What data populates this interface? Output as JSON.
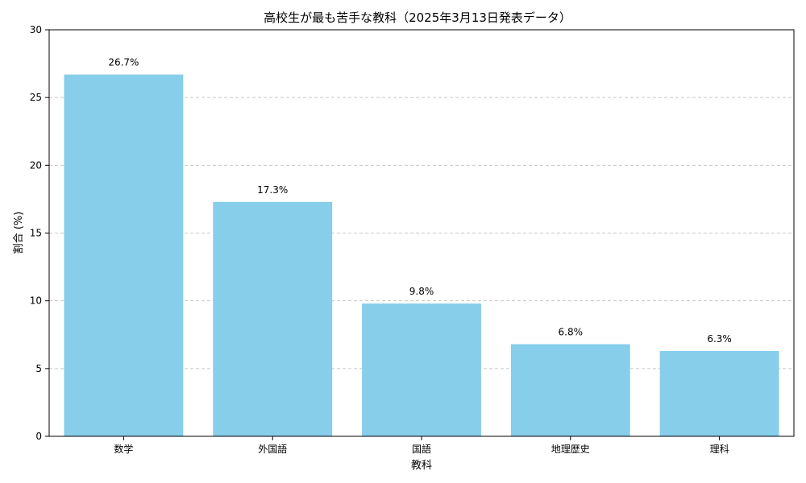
{
  "chart_data": {
    "type": "bar",
    "title": "高校生が最も苦手な教科（2025年3月13日発表データ）",
    "xlabel": "教科",
    "ylabel": "割合 (%)",
    "categories": [
      "数学",
      "外国語",
      "国語",
      "地理歴史",
      "理科"
    ],
    "values": [
      26.7,
      17.3,
      9.8,
      6.8,
      6.3
    ],
    "data_labels": [
      "26.7%",
      "17.3%",
      "9.8%",
      "6.8%",
      "6.3%"
    ],
    "ylim": [
      0,
      30
    ],
    "yticks": [
      0,
      5,
      10,
      15,
      20,
      25,
      30
    ],
    "grid": "y-dashed",
    "bar_color": "#87ceeb"
  }
}
